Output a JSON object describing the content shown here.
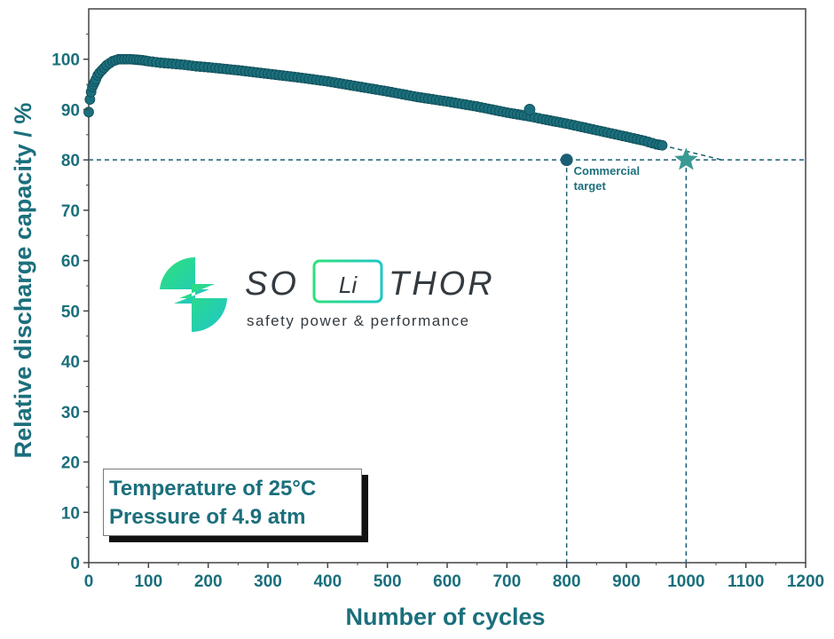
{
  "chart_data": {
    "type": "scatter",
    "title": "",
    "xlabel": "Number of cycles",
    "ylabel": "Relative discharge capacity / %",
    "xlim": [
      0,
      1200
    ],
    "ylim": [
      0,
      110
    ],
    "xticks": [
      0,
      100,
      200,
      300,
      400,
      500,
      600,
      700,
      800,
      900,
      1000,
      1100,
      1200
    ],
    "yticks": [
      0,
      10,
      20,
      30,
      40,
      50,
      60,
      70,
      80,
      90,
      100
    ],
    "grid": false,
    "colors": {
      "series": "#1b6f7c",
      "target_marker": "#1b5f75",
      "star": "#3a9a94",
      "axis": "#1b6f7c"
    },
    "series": [
      {
        "x": [
          0,
          2,
          4,
          6,
          8,
          10,
          12,
          15,
          18,
          22,
          26,
          30,
          35,
          40,
          45,
          50,
          55,
          60,
          70,
          80,
          90,
          100,
          120,
          140,
          160,
          180,
          200,
          250,
          300,
          350,
          400,
          450,
          500,
          550,
          600,
          650,
          700,
          740,
          760,
          800,
          850,
          900,
          930,
          950,
          960
        ],
        "values": [
          89.5,
          92,
          93.5,
          94.5,
          95,
          95.5,
          96,
          96.8,
          97.3,
          97.8,
          98.3,
          98.8,
          99.2,
          99.6,
          99.8,
          100,
          100,
          100,
          100,
          99.9,
          99.8,
          99.6,
          99.3,
          99.1,
          98.9,
          98.6,
          98.4,
          97.8,
          97.1,
          96.4,
          95.6,
          94.6,
          93.6,
          92.5,
          91.6,
          90.6,
          89.4,
          88.6,
          88.1,
          87.2,
          85.9,
          84.6,
          83.8,
          83.1,
          82.9
        ]
      }
    ],
    "outliers": [
      {
        "x": 738,
        "y": 90
      }
    ],
    "extrapolation": {
      "x": [
        960,
        1060
      ],
      "values": [
        82.9,
        80
      ]
    },
    "reference_y": 80,
    "reference_x": [
      800,
      1000
    ],
    "annotations": [
      {
        "type": "point",
        "x": 800,
        "y": 80,
        "text_lines": [
          "Commercial",
          "target"
        ]
      },
      {
        "type": "star",
        "x": 1000,
        "y": 80
      }
    ]
  },
  "conditions": {
    "temperature": "Temperature of 25°C",
    "pressure": "Pressure of 4.9 atm"
  },
  "logo": {
    "name_part1": "SO",
    "name_part2": "Li",
    "name_part3": "THOR",
    "tagline": "safety power & performance",
    "colors": {
      "green": "#2ee07a",
      "teal": "#1fc6c8",
      "text": "#333a40"
    }
  }
}
